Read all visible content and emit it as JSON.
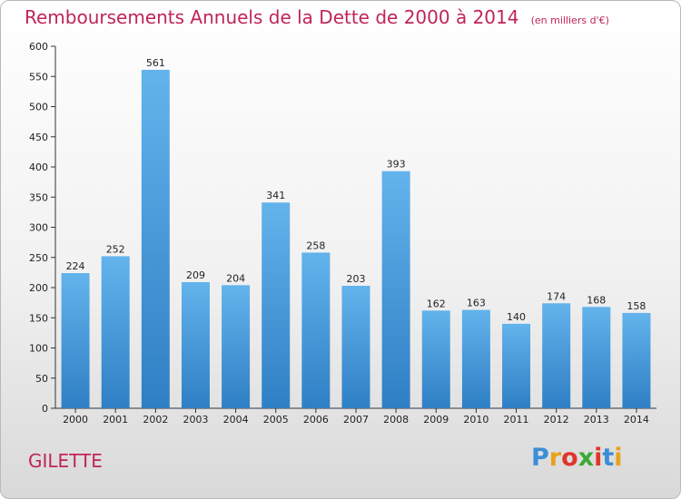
{
  "title": "Remboursements Annuels de la Dette de 2000 à 2014",
  "unit": "(en milliers d'€)",
  "commune": "GILETTE",
  "logo": {
    "letters": [
      "P",
      "r",
      "o",
      "x",
      "i",
      "t",
      "i"
    ],
    "colors": [
      "#3a8ed6",
      "#e8a21a",
      "#e0352b",
      "#3aaa35",
      "#e0352b",
      "#3a8ed6",
      "#e8a21a"
    ]
  },
  "colors": {
    "bar_top": "#63b3ec",
    "bar_bottom": "#2f7fc5",
    "title": "#c0245a"
  },
  "chart_data": {
    "type": "bar",
    "categories": [
      "2000",
      "2001",
      "2002",
      "2003",
      "2004",
      "2005",
      "2006",
      "2007",
      "2008",
      "2009",
      "2010",
      "2011",
      "2012",
      "2013",
      "2014"
    ],
    "values": [
      224,
      252,
      561,
      209,
      204,
      341,
      258,
      203,
      393,
      162,
      163,
      140,
      174,
      168,
      158
    ],
    "ylim": [
      0,
      600
    ],
    "yticks": [
      0,
      50,
      100,
      150,
      200,
      250,
      300,
      350,
      400,
      450,
      500,
      550,
      600
    ],
    "grid": false,
    "legend": "none"
  }
}
